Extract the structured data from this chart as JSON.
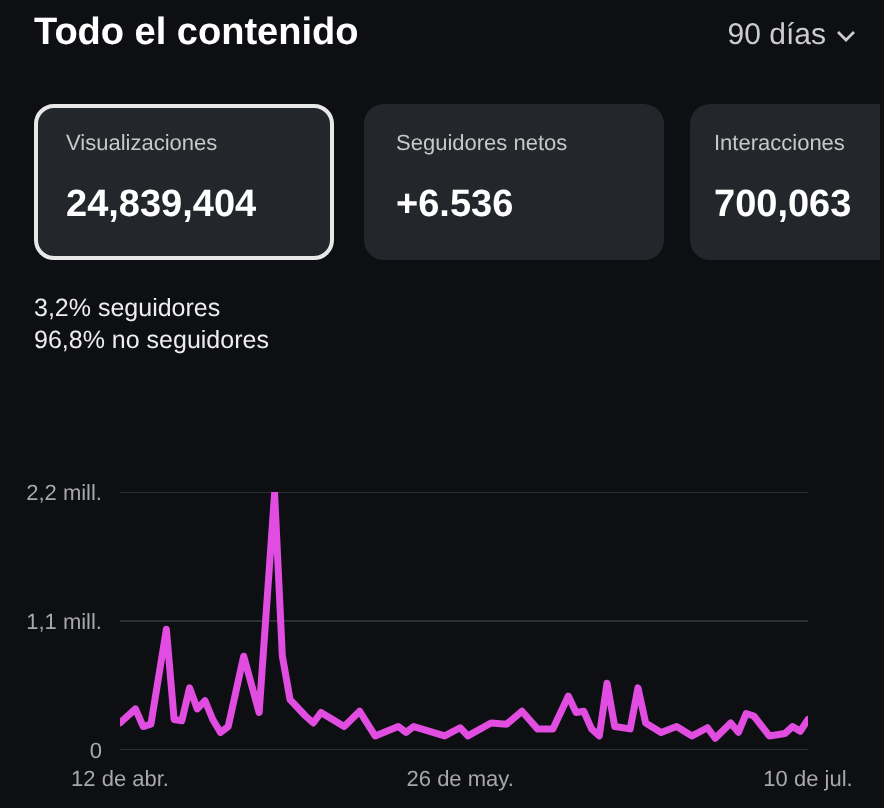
{
  "chart_data": {
    "type": "line",
    "title": "Todo el contenido",
    "annotations": [
      "90 días",
      "Visualizaciones",
      "24,839,404",
      "Seguidores netos",
      "+6.536",
      "Interacciones",
      "700,063",
      "3,2% seguidores",
      "96,8% no seguidores"
    ],
    "x": [
      "--04-12",
      "--04-14",
      "--04-15",
      "--04-16",
      "--04-18",
      "--04-19",
      "--04-20",
      "--04-21",
      "--04-22",
      "--04-23",
      "--04-24",
      "--04-25",
      "--04-26",
      "--04-28",
      "--04-30",
      "--05-02",
      "--05-03",
      "--05-04",
      "--05-06",
      "--05-07",
      "--05-08",
      "--05-11",
      "--05-13",
      "--05-15",
      "--05-18",
      "--05-19",
      "--05-20",
      "--05-24",
      "--05-26",
      "--05-27",
      "--05-30",
      "--06-01",
      "--06-03",
      "--06-05",
      "--06-07",
      "--06-09",
      "--06-10",
      "--06-11",
      "--06-12",
      "--06-13",
      "--06-14",
      "--06-15",
      "--06-17",
      "--06-18",
      "--06-19",
      "--06-21",
      "--06-23",
      "--06-25",
      "--06-27",
      "--06-28",
      "--06-30",
      "--07-01",
      "--07-02",
      "--07-03",
      "--07-05",
      "--07-07",
      "--07-08",
      "--07-09",
      "--07-10"
    ],
    "series": [
      {
        "color": "#e04de0",
        "values": [
          0.23,
          0.35,
          0.2,
          0.22,
          1.03,
          0.26,
          0.25,
          0.53,
          0.35,
          0.42,
          0.26,
          0.15,
          0.2,
          0.8,
          0.32,
          2.19,
          0.8,
          0.43,
          0.29,
          0.23,
          0.32,
          0.2,
          0.33,
          0.12,
          0.2,
          0.15,
          0.2,
          0.12,
          0.19,
          0.12,
          0.23,
          0.22,
          0.33,
          0.18,
          0.18,
          0.46,
          0.32,
          0.33,
          0.18,
          0.12,
          0.57,
          0.2,
          0.18,
          0.53,
          0.23,
          0.15,
          0.2,
          0.12,
          0.19,
          0.1,
          0.23,
          0.15,
          0.31,
          0.29,
          0.12,
          0.14,
          0.2,
          0.16,
          0.26
        ]
      }
    ],
    "xlim": [
      "--04-12",
      "--07-10"
    ],
    "xticks": [
      {
        "value": "--04-12",
        "label": "12 de abr."
      },
      {
        "value": "--05-26",
        "label": "26 de may."
      },
      {
        "value": "--07-10",
        "label": "10 de jul."
      }
    ],
    "ylim": [
      0,
      2.2
    ],
    "yticks": [
      {
        "value": 0,
        "label": "0"
      },
      {
        "value": 1.1,
        "label": "1,1 mill."
      },
      {
        "value": 2.2,
        "label": "2,2 mill."
      }
    ],
    "grid": "y",
    "legend": false,
    "marker": "none",
    "line_style": "solid"
  }
}
